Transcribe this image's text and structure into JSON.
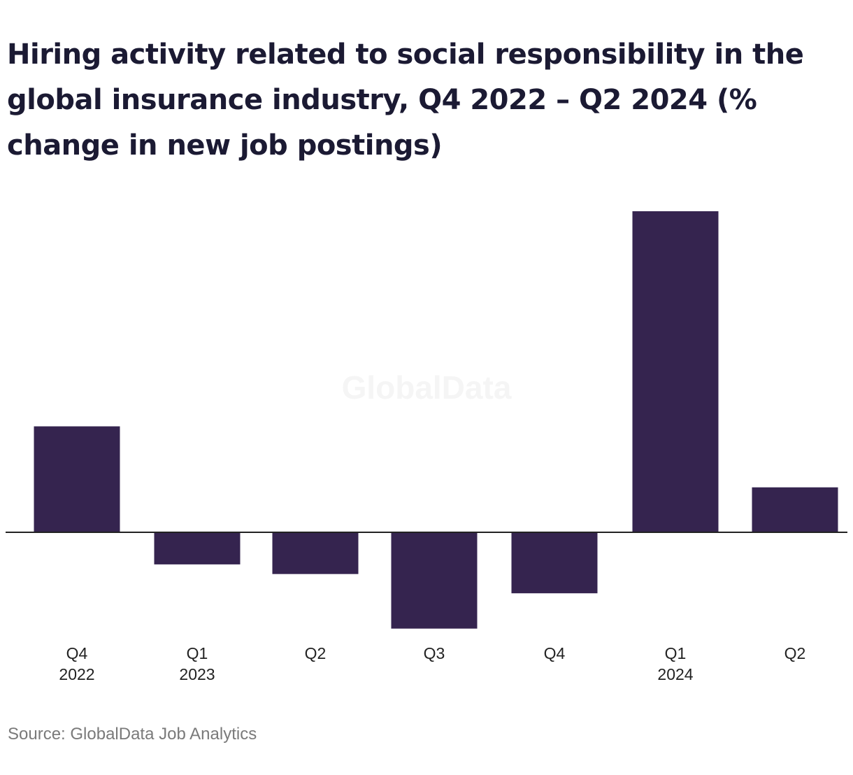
{
  "chart_data": {
    "type": "bar",
    "title": "Hiring activity related to social responsibility in the global insurance industry, Q4 2022 – Q2 2024 (% change in new job postings)",
    "categories": [
      {
        "quarter": "Q4",
        "year": "2022"
      },
      {
        "quarter": "Q1",
        "year": "2023"
      },
      {
        "quarter": "Q2",
        "year": ""
      },
      {
        "quarter": "Q3",
        "year": ""
      },
      {
        "quarter": "Q4",
        "year": ""
      },
      {
        "quarter": "Q1",
        "year": "2024"
      },
      {
        "quarter": "Q2",
        "year": ""
      }
    ],
    "values": [
      33,
      -10,
      -13,
      -30,
      -19,
      100,
      14
    ],
    "ylim": [
      -30,
      100
    ],
    "bar_color": "#35244f",
    "axis_color": "#222222",
    "grid": false,
    "legend": "none",
    "watermark": "GlobalData"
  },
  "source": "Source: GlobalData Job Analytics"
}
